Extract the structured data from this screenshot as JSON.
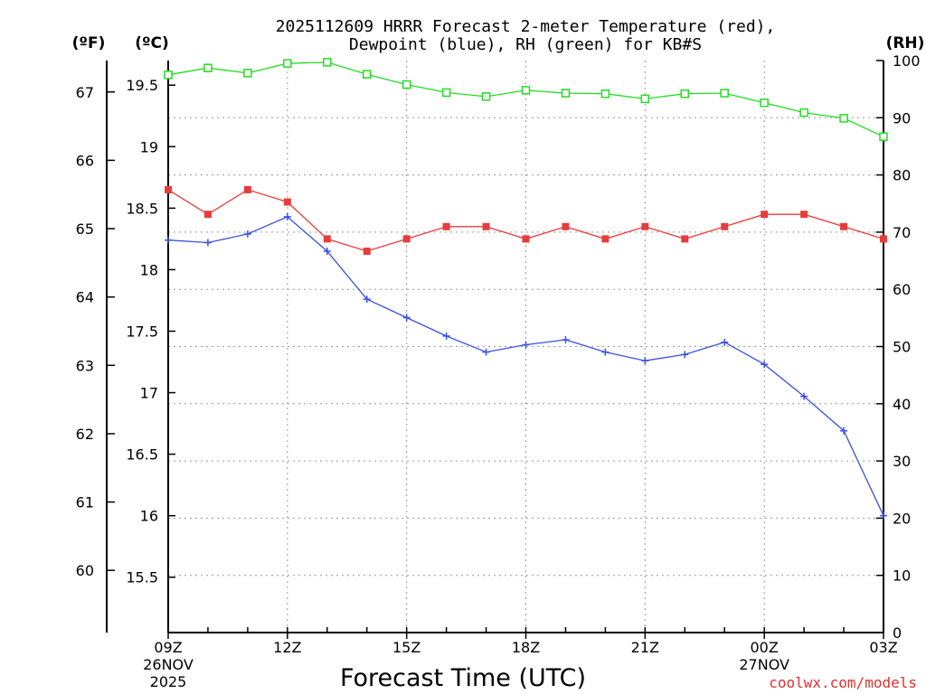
{
  "chart_data": {
    "type": "line",
    "title_line1": "2025112609 HRRR Forecast 2-meter Temperature (red),",
    "title_line2": "Dewpoint (blue), RH (green) for KB#S",
    "xlabel": "Forecast Time (UTC)",
    "watermark": "coolwx.com/models",
    "unit_labels": {
      "fahrenheit": "(ºF)",
      "celsius": "(ºC)",
      "rh": "(RH)"
    },
    "x": [
      0,
      1,
      2,
      3,
      4,
      5,
      6,
      7,
      8,
      9,
      10,
      11,
      12,
      13,
      14,
      15,
      16,
      17,
      18
    ],
    "x_ticks": [
      {
        "x": 0,
        "label": "09Z",
        "date": "26NOV",
        "year": "2025"
      },
      {
        "x": 3,
        "label": "12Z"
      },
      {
        "x": 6,
        "label": "15Z"
      },
      {
        "x": 9,
        "label": "18Z"
      },
      {
        "x": 12,
        "label": "21Z"
      },
      {
        "x": 15,
        "label": "00Z",
        "date": "27NOV"
      },
      {
        "x": 18,
        "label": "03Z"
      }
    ],
    "celsius_axis": {
      "ylim": [
        15.05,
        19.7
      ],
      "ticks": [
        "15.5",
        "16",
        "16.5",
        "17",
        "17.5",
        "18",
        "18.5",
        "19",
        "19.5"
      ]
    },
    "fahrenheit_ticks": [
      "60",
      "61",
      "62",
      "63",
      "64",
      "65",
      "66",
      "67"
    ],
    "rh_axis": {
      "ylim": [
        0,
        100
      ],
      "ticks": [
        "0",
        "10",
        "20",
        "30",
        "40",
        "50",
        "60",
        "70",
        "80",
        "90",
        "100"
      ]
    },
    "series": [
      {
        "name": "Temperature",
        "axis": "celsius",
        "color": "#e83c3c",
        "marker": "filled-square",
        "values": [
          18.65,
          18.45,
          18.65,
          18.55,
          18.25,
          18.15,
          18.25,
          18.35,
          18.35,
          18.25,
          18.35,
          18.25,
          18.35,
          18.25,
          18.35,
          18.45,
          18.45,
          18.35,
          18.25
        ]
      },
      {
        "name": "Dewpoint",
        "axis": "celsius",
        "color": "#3c50e0",
        "marker": "plus",
        "values": [
          18.24,
          18.22,
          18.29,
          18.43,
          18.15,
          17.76,
          17.61,
          17.46,
          17.33,
          17.39,
          17.43,
          17.33,
          17.26,
          17.31,
          17.41,
          17.23,
          16.97,
          16.69,
          16.0
        ]
      },
      {
        "name": "RH",
        "axis": "rh",
        "color": "#22dd22",
        "marker": "open-square",
        "values": [
          97.5,
          98.7,
          97.8,
          99.5,
          99.7,
          97.6,
          95.8,
          94.4,
          93.7,
          94.8,
          94.3,
          94.2,
          93.3,
          94.2,
          94.3,
          92.6,
          90.9,
          89.9,
          86.7
        ]
      }
    ]
  }
}
